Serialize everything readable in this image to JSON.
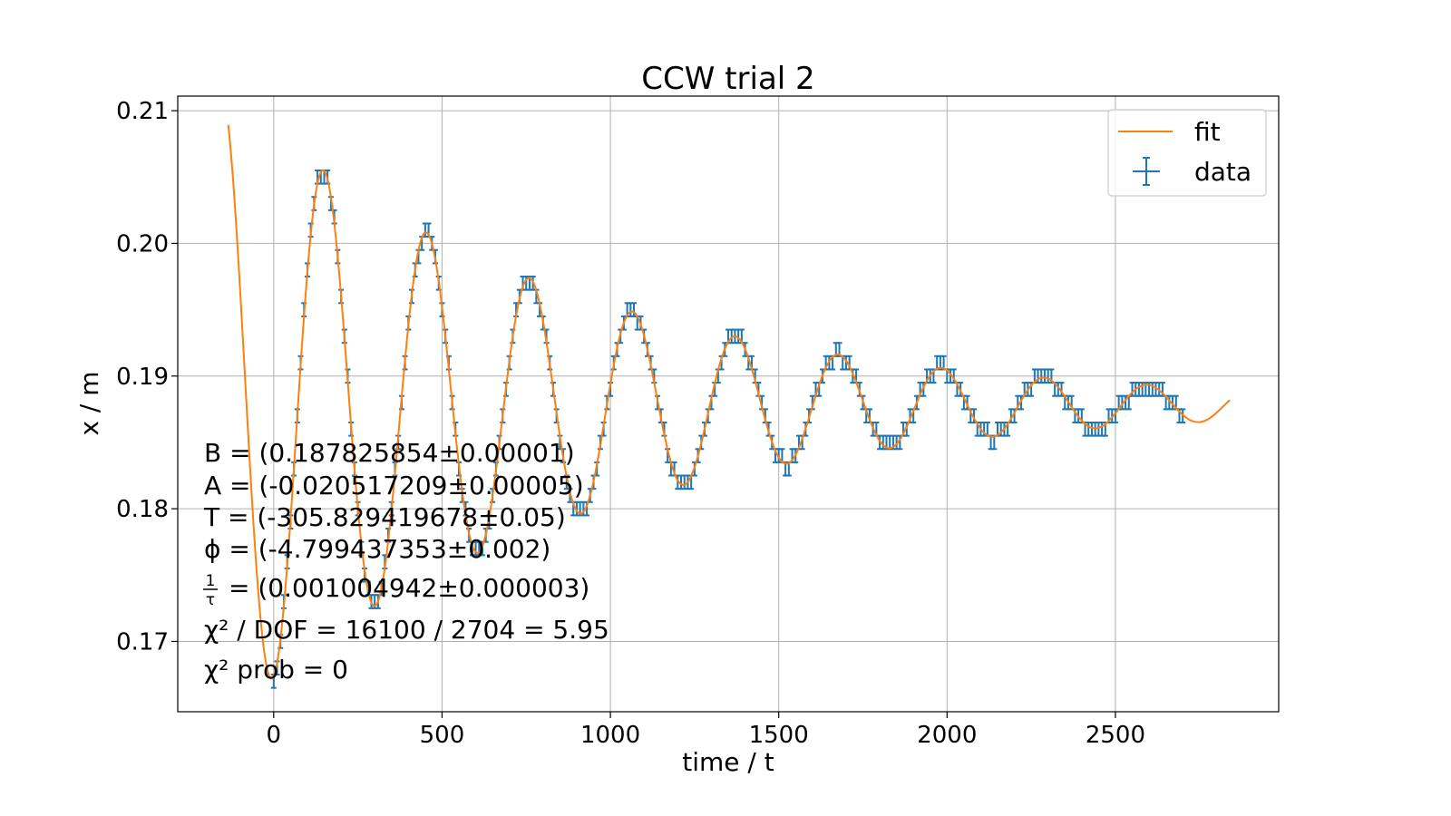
{
  "chart_data": {
    "type": "line",
    "title": "CCW trial 2",
    "xlabel": "time / t",
    "ylabel": "x / m",
    "xlim": [
      -285,
      2985
    ],
    "ylim": [
      0.1647,
      0.2111
    ],
    "xticks": [
      0,
      500,
      1000,
      1500,
      2000,
      2500
    ],
    "xtick_labels": [
      "0",
      "500",
      "1000",
      "1500",
      "2000",
      "2500"
    ],
    "yticks": [
      0.17,
      0.18,
      0.19,
      0.2,
      0.21
    ],
    "ytick_labels": [
      "0.17",
      "0.18",
      "0.19",
      "0.20",
      "0.21"
    ],
    "grid": true,
    "legend_position": "top-right",
    "colors": {
      "fit": "#ff7f0e",
      "data": "#1f77b4"
    },
    "series": [
      {
        "name": "fit",
        "kind": "line",
        "model": "B + A*exp(-t/tau)*sin(2*pi*t/T + phi)",
        "params": {
          "B": 0.187825854,
          "A": -0.020517209,
          "T": -305.829419678,
          "phi": -4.799437353,
          "inv_tau": 0.001004942
        },
        "x_range": [
          -135,
          2840
        ]
      },
      {
        "name": "data",
        "kind": "errorbar",
        "x_start": 0,
        "x_end": 2700,
        "x_step": 10,
        "y_resolution": 0.001,
        "y_error": 0.0005,
        "x_error": 2
      }
    ],
    "annotations": [
      "B = (0.187825854±0.00001)",
      "A = (-0.020517209±0.00005)",
      "T = (-305.829419678±0.05)",
      "ϕ = (-4.799437353±0.002)",
      "= (0.001004942±0.000003)",
      "χ² / DOF = 16100 / 2704 = 5.95",
      "χ² prob = 0"
    ],
    "annotation_fraction": {
      "numerator": "1",
      "denominator": "τ"
    }
  }
}
